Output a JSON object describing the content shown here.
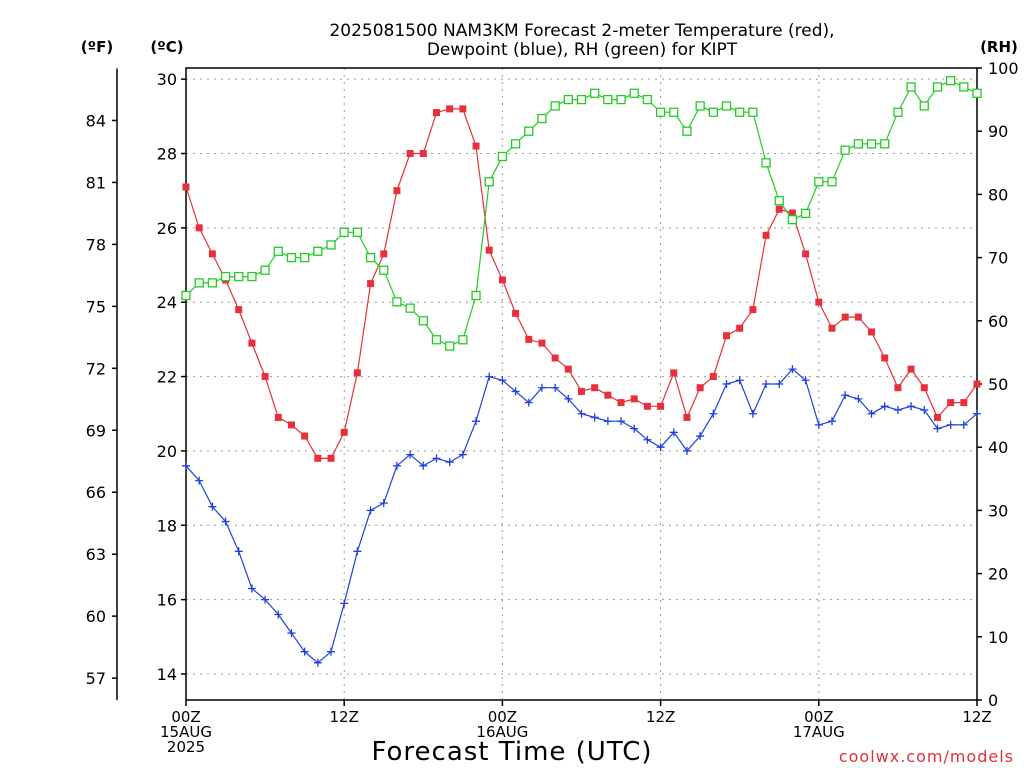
{
  "chart_data": {
    "type": "line",
    "title": [
      "2025081500 NAM3KM Forecast 2-meter Temperature (red),",
      "Dewpoint (blue), RH (green) for KIPT"
    ],
    "xlabel": "Forecast Time (UTC)",
    "credit": "coolwx.com/models",
    "units": {
      "fahrenheit": "(ºF)",
      "celsius": "(ºC)",
      "rh": "(RH)"
    },
    "x_ticks": [
      {
        "hour": 0,
        "lines": [
          "00Z",
          "15AUG",
          "2025"
        ]
      },
      {
        "hour": 12,
        "lines": [
          "12Z"
        ]
      },
      {
        "hour": 24,
        "lines": [
          "00Z",
          "16AUG"
        ]
      },
      {
        "hour": 36,
        "lines": [
          "12Z"
        ]
      },
      {
        "hour": 48,
        "lines": [
          "00Z",
          "17AUG"
        ]
      },
      {
        "hour": 60,
        "lines": [
          "12Z"
        ]
      }
    ],
    "xlim": [
      0,
      60
    ],
    "ylim_celsius": [
      13.3,
      30.3
    ],
    "celsius_ticks": [
      14,
      16,
      18,
      20,
      22,
      24,
      26,
      28,
      30
    ],
    "fahrenheit_ticks": [
      57,
      60,
      63,
      66,
      69,
      72,
      75,
      78,
      81,
      84
    ],
    "rh_ticks": [
      0,
      10,
      20,
      30,
      40,
      50,
      60,
      70,
      80,
      90,
      100
    ],
    "ylim_rh": [
      0,
      100
    ],
    "grid": true,
    "x_hours": [
      0,
      1,
      2,
      3,
      4,
      5,
      6,
      7,
      8,
      9,
      10,
      11,
      12,
      13,
      14,
      15,
      16,
      17,
      18,
      19,
      20,
      21,
      22,
      23,
      24,
      25,
      26,
      27,
      28,
      29,
      30,
      31,
      32,
      33,
      34,
      35,
      36,
      37,
      38,
      39,
      40,
      41,
      42,
      43,
      44,
      45,
      46,
      47,
      48,
      49,
      50,
      51,
      52,
      53,
      54,
      55,
      56,
      57,
      58,
      59,
      60
    ],
    "series": [
      {
        "name": "Temperature",
        "color": "#e8303a",
        "marker": "filled-square",
        "axis": "celsius",
        "values": [
          27.1,
          26.0,
          25.3,
          24.6,
          23.8,
          22.9,
          22.0,
          20.9,
          20.7,
          20.4,
          19.8,
          19.8,
          20.5,
          22.1,
          24.5,
          25.3,
          27.0,
          28.0,
          28.0,
          29.1,
          29.2,
          29.2,
          28.2,
          25.4,
          24.6,
          23.7,
          23.0,
          22.9,
          22.5,
          22.2,
          21.6,
          21.7,
          21.5,
          21.3,
          21.4,
          21.2,
          21.2,
          22.1,
          20.9,
          21.7,
          22.0,
          23.1,
          23.3,
          23.8,
          25.8,
          26.5,
          26.4,
          25.3,
          24.0,
          23.3,
          23.6,
          23.6,
          23.2,
          22.5,
          21.7,
          22.2,
          21.7,
          20.9,
          21.3,
          21.3,
          21.8
        ]
      },
      {
        "name": "Dewpoint",
        "color": "#2040e0",
        "marker": "plus",
        "axis": "celsius",
        "values": [
          19.6,
          19.2,
          18.5,
          18.1,
          17.3,
          16.3,
          16.0,
          15.6,
          15.1,
          14.6,
          14.3,
          14.6,
          15.9,
          17.3,
          18.4,
          18.6,
          19.6,
          19.9,
          19.6,
          19.8,
          19.7,
          19.9,
          20.8,
          22.0,
          21.9,
          21.6,
          21.3,
          21.7,
          21.7,
          21.4,
          21.0,
          20.9,
          20.8,
          20.8,
          20.6,
          20.3,
          20.1,
          20.5,
          20.0,
          20.4,
          21.0,
          21.8,
          21.9,
          21.0,
          21.8,
          21.8,
          22.2,
          21.9,
          20.7,
          20.8,
          21.5,
          21.4,
          21.0,
          21.2,
          21.1,
          21.2,
          21.1,
          20.6,
          20.7,
          20.7,
          21.0
        ]
      },
      {
        "name": "RH",
        "color": "#22cc22",
        "marker": "open-square",
        "axis": "rh",
        "values": [
          64,
          66,
          66,
          67,
          67,
          67,
          68,
          71,
          70,
          70,
          71,
          72,
          74,
          74,
          70,
          68,
          63,
          62,
          60,
          57,
          56,
          57,
          64,
          82,
          86,
          88,
          90,
          92,
          94,
          95,
          95,
          96,
          95,
          95,
          96,
          95,
          93,
          93,
          90,
          94,
          93,
          94,
          93,
          93,
          85,
          79,
          76,
          77,
          82,
          82,
          87,
          88,
          88,
          88,
          93,
          97,
          94,
          97,
          98,
          97,
          96
        ]
      }
    ]
  }
}
